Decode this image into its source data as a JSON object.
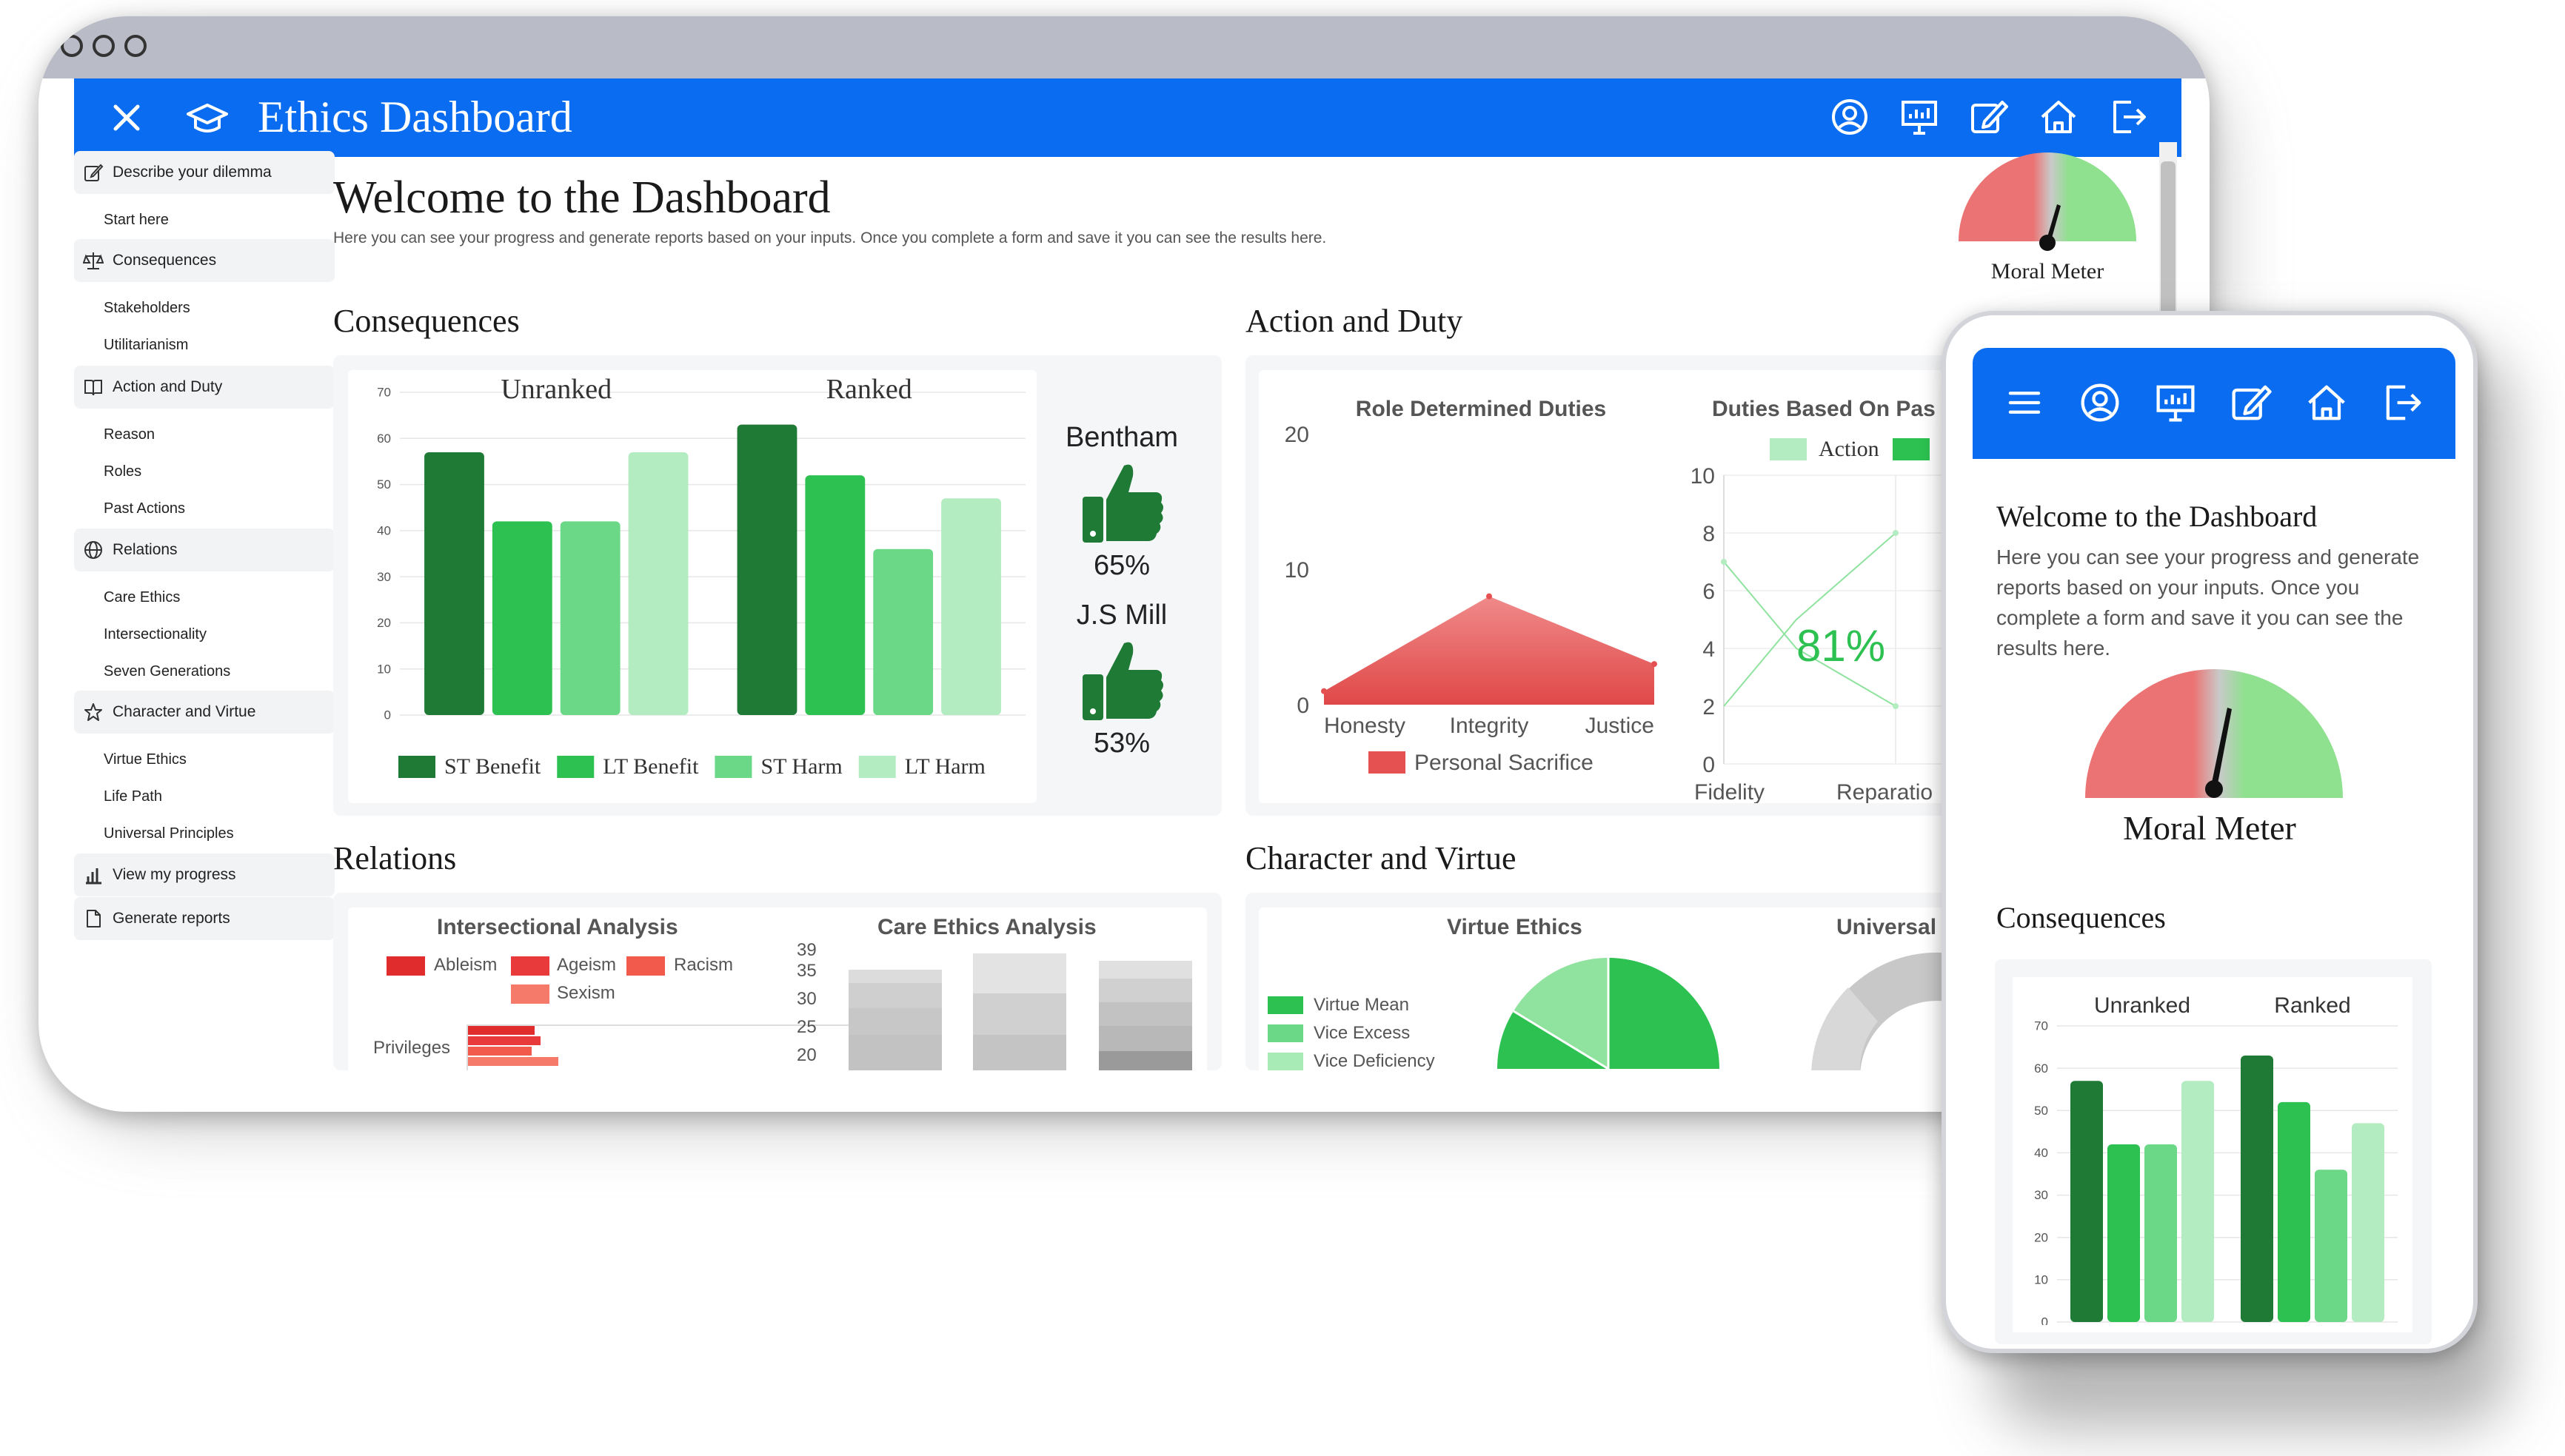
{
  "app": {
    "title": "Ethics Dashboard"
  },
  "sidebar": {
    "sections": [
      {
        "label": "Describe your dilemma",
        "icon": "edit-icon",
        "items": [
          "Start here"
        ]
      },
      {
        "label": "Consequences",
        "icon": "scale-icon",
        "items": [
          "Stakeholders",
          "Utilitarianism"
        ]
      },
      {
        "label": "Action and Duty",
        "icon": "book-icon",
        "items": [
          "Reason",
          "Roles",
          "Past Actions"
        ]
      },
      {
        "label": "Relations",
        "icon": "globe-icon",
        "items": [
          "Care Ethics",
          "Intersectionality",
          "Seven Generations"
        ]
      },
      {
        "label": "Character and Virtue",
        "icon": "star-icon",
        "items": [
          "Virtue Ethics",
          "Life Path",
          "Universal Principles"
        ]
      },
      {
        "label": "View my progress",
        "icon": "bar-chart-icon",
        "items": []
      },
      {
        "label": "Generate reports",
        "icon": "document-icon",
        "items": []
      }
    ]
  },
  "main": {
    "title": "Welcome to the Dashboard",
    "description": "Here you can see your progress and generate reports based on your inputs. Once you complete a form and save it you can see the results here.",
    "moral_meter_label": "Moral Meter",
    "sections": {
      "consequences": "Consequences",
      "action_duty": "Action and Duty",
      "relations": "Relations",
      "character_virtue": "Character and Virtue"
    },
    "thumbs": [
      {
        "name": "Bentham",
        "percent": "65%"
      },
      {
        "name": "J.S Mill",
        "percent": "53%"
      }
    ],
    "role_duties_title": "Role Determined Duties",
    "past_duties_title": "Duties Based On Pas",
    "past_duties_percent": "81%",
    "past_duties_legend": [
      "Action"
    ],
    "intersectional_title": "Intersectional Analysis",
    "intersectional_legend": [
      "Ableism",
      "Ageism",
      "Racism",
      "Sexism"
    ],
    "intersectional_ylabel": "Privileges",
    "care_title": "Care Ethics Analysis",
    "care_ticks": [
      "39",
      "35",
      "30",
      "25",
      "20"
    ],
    "virtue_title": "Virtue Ethics",
    "virtue_legend": [
      "Virtue Mean",
      "Vice Excess",
      "Vice Deficiency"
    ],
    "universal_title": "Universal"
  },
  "phone": {
    "title": "Welcome to the Dashboard",
    "description": "Here you can see your progress and generate reports based on your inputs. Once you complete a form and save it you can see the results here.",
    "moral_meter_label": "Moral Meter",
    "section": "Consequences"
  },
  "chart_data": [
    {
      "type": "bar",
      "title": "Consequences",
      "groups": [
        "Unranked",
        "Ranked"
      ],
      "categories": [
        "ST Benefit",
        "LT Benefit",
        "ST Harm",
        "LT Harm"
      ],
      "series": [
        {
          "name": "Unranked",
          "values": [
            57,
            42,
            42,
            57
          ]
        },
        {
          "name": "Ranked",
          "values": [
            63,
            52,
            36,
            47
          ]
        }
      ],
      "colors": [
        "#1e7a34",
        "#2cc150",
        "#6ad886",
        "#b3ecc0"
      ],
      "ylim": [
        0,
        70
      ],
      "yticks": [
        0,
        10,
        20,
        30,
        40,
        50,
        60,
        70
      ]
    },
    {
      "type": "area",
      "title": "Role Determined Duties",
      "categories": [
        "Honesty",
        "Integrity",
        "Justice"
      ],
      "series": [
        {
          "name": "Personal Sacrifice",
          "values": [
            1,
            8,
            3
          ]
        }
      ],
      "ylim": [
        0,
        20
      ],
      "yticks": [
        0,
        10,
        20
      ],
      "color": "#e55050"
    },
    {
      "type": "line",
      "title": "Duties Based On Pas",
      "categories": [
        "Fidelity",
        "Reparatio"
      ],
      "ylim": [
        0,
        10
      ],
      "yticks": [
        0,
        2,
        4,
        6,
        8,
        10
      ]
    }
  ]
}
